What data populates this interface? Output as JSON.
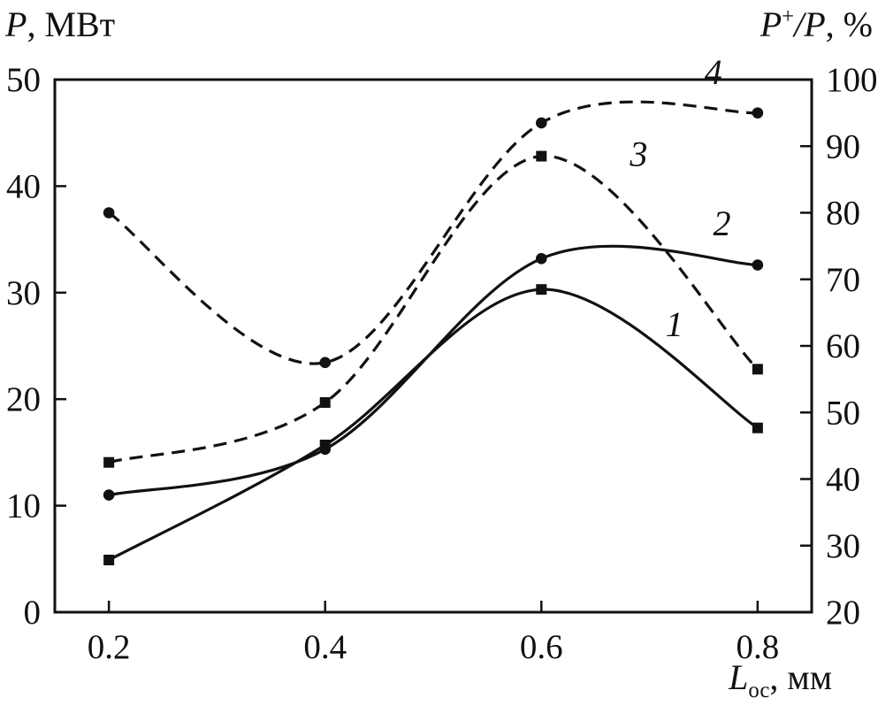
{
  "figure": {
    "left_axis_title": {
      "symbol": "P",
      "rest": ", МВт"
    },
    "right_axis_title": {
      "symbol": "P",
      "sup": "+",
      "after_sup": "/P",
      "rest": ", %"
    },
    "x_axis_title": {
      "symbol": "L",
      "sub": "ос",
      "rest": ", мм"
    }
  },
  "chart_data": {
    "type": "line",
    "title": "",
    "xlabel": "L_ос, мм",
    "ylabel_left": "P, МВт",
    "ylabel_right": "P+/P, %",
    "x": [
      0.2,
      0.4,
      0.6,
      0.8
    ],
    "xlim": [
      0.15,
      0.85
    ],
    "ylim_left": [
      0,
      50
    ],
    "ylim_right": [
      20,
      100
    ],
    "x_ticks": [
      0.2,
      0.4,
      0.6,
      0.8
    ],
    "left_ticks": [
      0,
      10,
      20,
      30,
      40,
      50
    ],
    "right_ticks": [
      20,
      30,
      40,
      50,
      60,
      70,
      80,
      90,
      100
    ],
    "grid": false,
    "legend": "numbered-curve-labels",
    "ink": "#111111",
    "background": "#ffffff",
    "series": [
      {
        "name": "1",
        "axis": "left",
        "unit": "МВт",
        "style": "solid",
        "marker": "square",
        "values": [
          4.9,
          15.7,
          30.3,
          17.3
        ]
      },
      {
        "name": "2",
        "axis": "left",
        "unit": "МВт",
        "style": "solid",
        "marker": "circle",
        "values": [
          11.0,
          15.3,
          33.2,
          32.6
        ]
      },
      {
        "name": "3",
        "axis": "right",
        "unit": "%",
        "style": "dashed",
        "marker": "square",
        "values": [
          42.5,
          51.5,
          88.5,
          56.5
        ]
      },
      {
        "name": "4",
        "axis": "right",
        "unit": "%",
        "style": "dashed",
        "marker": "circle",
        "values": [
          80.0,
          57.5,
          93.5,
          95.0
        ]
      }
    ],
    "annotations": [
      {
        "text": "1",
        "x": 0.723,
        "y_left": 25.9
      },
      {
        "text": "2",
        "x": 0.767,
        "y_left": 35.4
      },
      {
        "text": "3",
        "x": 0.69,
        "y_left": 41.9
      },
      {
        "text": "4",
        "x": 0.759,
        "y_left": 49.6
      }
    ]
  }
}
